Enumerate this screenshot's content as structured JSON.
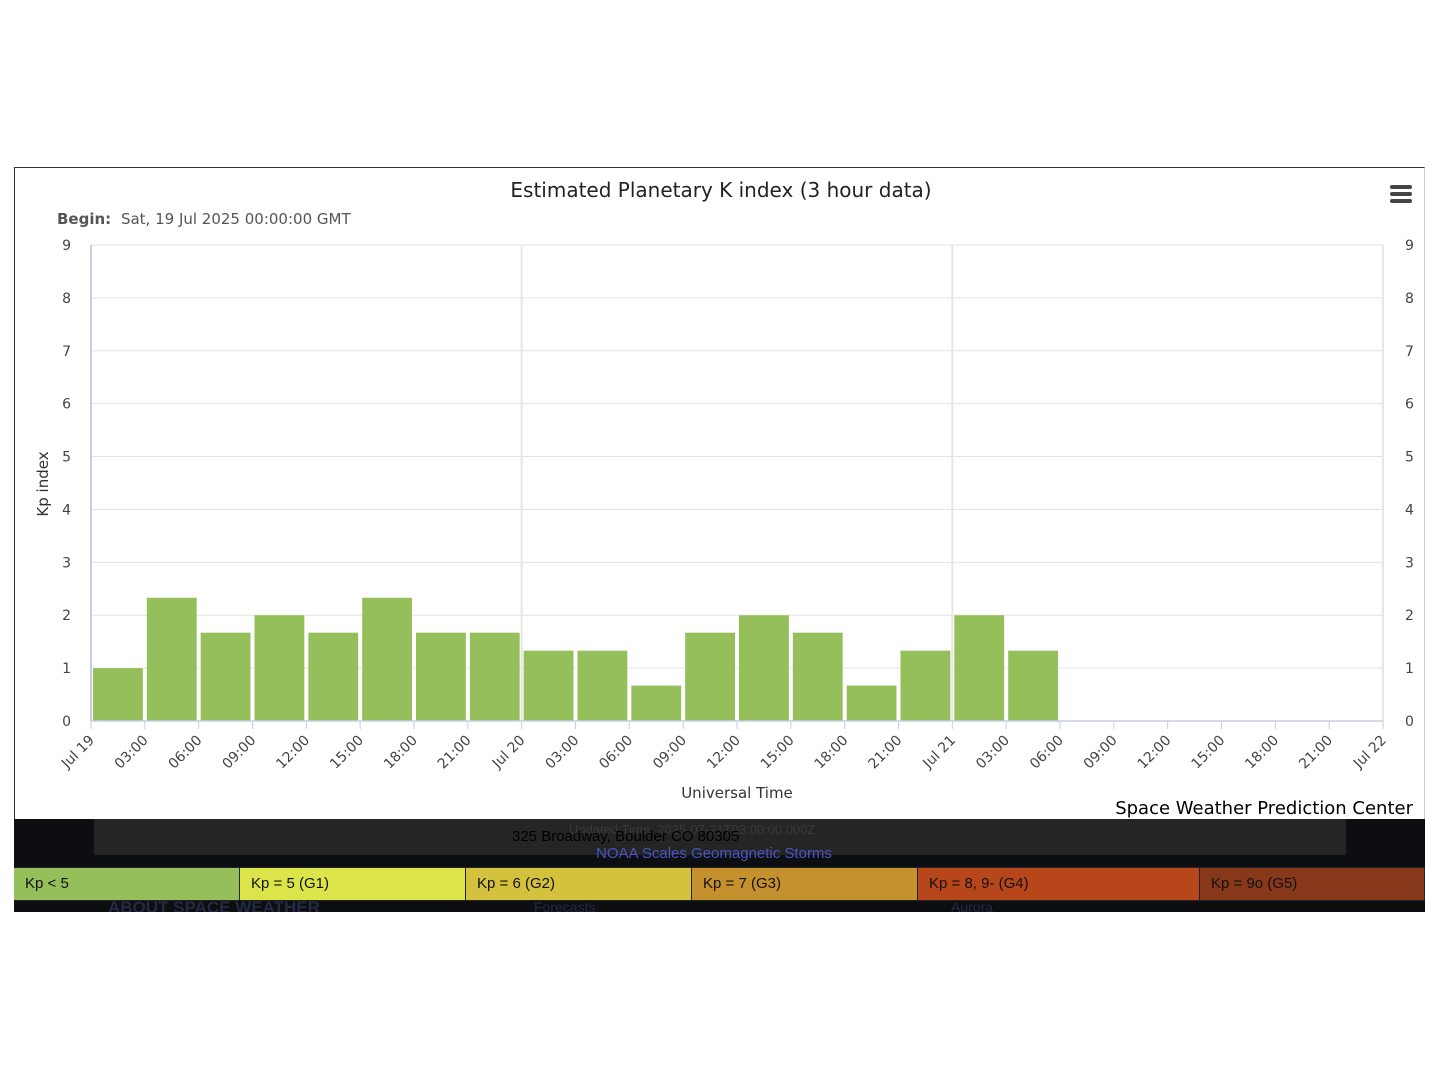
{
  "chart_data": {
    "type": "bar",
    "title": "Estimated Planetary K index (3 hour data)",
    "subtitle_label": "Begin:",
    "subtitle_value": "Sat, 19 Jul 2025 00:00:00 GMT",
    "ylabel": "Kp index",
    "xlabel": "Universal Time",
    "credit": "Space Weather Prediction Center",
    "ylim": [
      0,
      9
    ],
    "yticks": [
      "0",
      "1",
      "2",
      "3",
      "4",
      "5",
      "6",
      "7",
      "8",
      "9"
    ],
    "grid": true,
    "x_tick_labels": [
      "Jul 19",
      "03:00",
      "06:00",
      "09:00",
      "12:00",
      "15:00",
      "18:00",
      "21:00",
      "Jul 20",
      "03:00",
      "06:00",
      "09:00",
      "12:00",
      "15:00",
      "18:00",
      "21:00",
      "Jul 21",
      "03:00",
      "06:00",
      "09:00",
      "12:00",
      "15:00",
      "18:00",
      "21:00",
      "Jul 22"
    ],
    "x_start": "2025-07-19T00:00:00Z",
    "x_end": "2025-07-22T00:00:00Z",
    "x_step_hours": 3,
    "categories": [
      "2025-07-19T00:00Z",
      "2025-07-19T03:00Z",
      "2025-07-19T06:00Z",
      "2025-07-19T09:00Z",
      "2025-07-19T12:00Z",
      "2025-07-19T15:00Z",
      "2025-07-19T18:00Z",
      "2025-07-19T21:00Z",
      "2025-07-20T00:00Z",
      "2025-07-20T03:00Z",
      "2025-07-20T06:00Z",
      "2025-07-20T09:00Z",
      "2025-07-20T12:00Z",
      "2025-07-20T15:00Z",
      "2025-07-20T18:00Z",
      "2025-07-20T21:00Z",
      "2025-07-21T00:00Z",
      "2025-07-21T03:00Z"
    ],
    "values": [
      1.0,
      2.33,
      1.67,
      2.0,
      1.67,
      2.33,
      1.67,
      1.67,
      1.33,
      1.33,
      0.67,
      1.67,
      2.0,
      1.67,
      0.67,
      1.33,
      2.0,
      1.33
    ],
    "bar_color": "#94bf5a"
  },
  "footer": {
    "updated_text": "Updated Time: 2025-07-21T03:00:00.000Z",
    "address": "325 Broadway, Boulder CO 80305",
    "scales_link": "NOAA Scales Geomagnetic Storms",
    "about": "ABOUT SPACE WEATHER",
    "forecasts": "Forecasts",
    "aurora": "Aurora"
  },
  "legend": [
    {
      "label": "Kp < 5",
      "color": "#94bf5a"
    },
    {
      "label": "Kp = 5 (G1)",
      "color": "#dbe54a"
    },
    {
      "label": "Kp = 6 (G2)",
      "color": "#d4c13e"
    },
    {
      "label": "Kp = 7 (G3)",
      "color": "#c5902e"
    },
    {
      "label": "Kp = 8, 9- (G4)",
      "color": "#b8461b"
    },
    {
      "label": "Kp = 9o (G5)",
      "color": "#87381a"
    }
  ],
  "menu": {
    "icon": "hamburger-menu-icon"
  }
}
